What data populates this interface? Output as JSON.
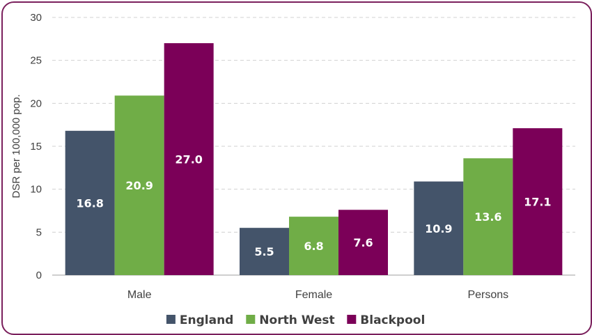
{
  "chart_data": {
    "type": "bar",
    "title": "",
    "ylabel": "DSR per 100,000 pop.",
    "xlabel": "",
    "categories": [
      "Male",
      "Female",
      "Persons"
    ],
    "ylim": [
      0,
      30
    ],
    "yticks": [
      0,
      5,
      10,
      15,
      20,
      25,
      30
    ],
    "grid": true,
    "legend_position": "bottom",
    "series": [
      {
        "name": "England",
        "color": "#44546a",
        "values": [
          16.8,
          5.5,
          10.9
        ],
        "labels": [
          "16.8",
          "5.5",
          "10.9"
        ]
      },
      {
        "name": "North West",
        "color": "#70ad47",
        "values": [
          20.9,
          6.8,
          13.6
        ],
        "labels": [
          "20.9",
          "6.8",
          "13.6"
        ]
      },
      {
        "name": "Blackpool",
        "color": "#7b0058",
        "values": [
          27.0,
          7.6,
          17.1
        ],
        "labels": [
          "27.0",
          "7.6",
          "17.1"
        ]
      }
    ]
  },
  "colors": {
    "frame_border": "#7a1f5c",
    "gridline": "#d0d0d0",
    "axis": "#bfbfbf",
    "label_text": "#ffffff"
  }
}
